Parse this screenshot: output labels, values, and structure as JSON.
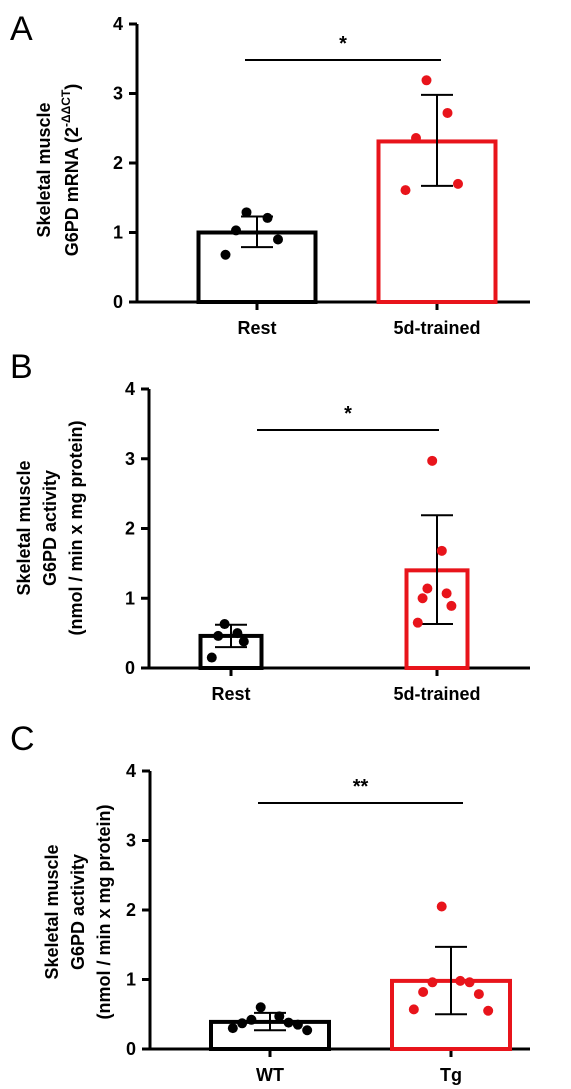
{
  "panels": [
    {
      "letter": "A",
      "ylabel_lines": [
        "Skeletal muscle",
        "G6PD mRNA (2",
        "-ΔΔCT",
        ")"
      ],
      "significance": "*",
      "chart_data": {
        "type": "bar",
        "categories": [
          "Rest",
          "5d-trained"
        ],
        "values": [
          1.0,
          2.31
        ],
        "error": [
          [
            0.79,
            1.23
          ],
          [
            1.67,
            2.98
          ]
        ],
        "points": [
          [
            1.29,
            1.21,
            1.03,
            0.9,
            0.68
          ],
          [
            3.19,
            2.72,
            2.36,
            1.7,
            1.61
          ]
        ],
        "series_colors": [
          "#000000",
          "#e8141b"
        ],
        "ylim": [
          0,
          4
        ],
        "yticks": [
          0,
          1,
          2,
          3,
          4
        ],
        "ylabel": "Skeletal muscle G6PD mRNA (2-ΔΔCT)",
        "significance": "*"
      }
    },
    {
      "letter": "B",
      "ylabel_lines": [
        "Skeletal muscle",
        "G6PD activity",
        "(nmol / min x mg protein)"
      ],
      "significance": "*",
      "chart_data": {
        "type": "bar",
        "categories": [
          "Rest",
          "5d-trained"
        ],
        "values": [
          0.46,
          1.4
        ],
        "error": [
          [
            0.3,
            0.62
          ],
          [
            0.63,
            2.19
          ]
        ],
        "points": [
          [
            0.63,
            0.5,
            0.46,
            0.38,
            0.15
          ],
          [
            2.97,
            1.68,
            1.14,
            1.07,
            1.0,
            0.89,
            0.65
          ]
        ],
        "series_colors": [
          "#000000",
          "#e8141b"
        ],
        "ylim": [
          0,
          4
        ],
        "yticks": [
          0,
          1,
          2,
          3,
          4
        ],
        "ylabel": "Skeletal muscle G6PD activity (nmol / min x mg protein)",
        "significance": "*"
      }
    },
    {
      "letter": "C",
      "ylabel_lines": [
        "Skeletal muscle",
        "G6PD activity",
        "(nmol / min x mg protein)"
      ],
      "significance": "**",
      "chart_data": {
        "type": "bar",
        "categories": [
          "WT",
          "Tg"
        ],
        "values": [
          0.39,
          0.98
        ],
        "error": [
          [
            0.27,
            0.52
          ],
          [
            0.5,
            1.47
          ]
        ],
        "points": [
          [
            0.6,
            0.47,
            0.42,
            0.38,
            0.37,
            0.35,
            0.3,
            0.27
          ],
          [
            2.05,
            0.98,
            0.96,
            0.96,
            0.82,
            0.79,
            0.57,
            0.55
          ]
        ],
        "series_colors": [
          "#000000",
          "#e8141b"
        ],
        "ylim": [
          0,
          4
        ],
        "yticks": [
          0,
          1,
          2,
          3,
          4
        ],
        "ylabel": "Skeletal muscle G6PD activity (nmol / min x mg protein)",
        "significance": "**"
      }
    }
  ]
}
